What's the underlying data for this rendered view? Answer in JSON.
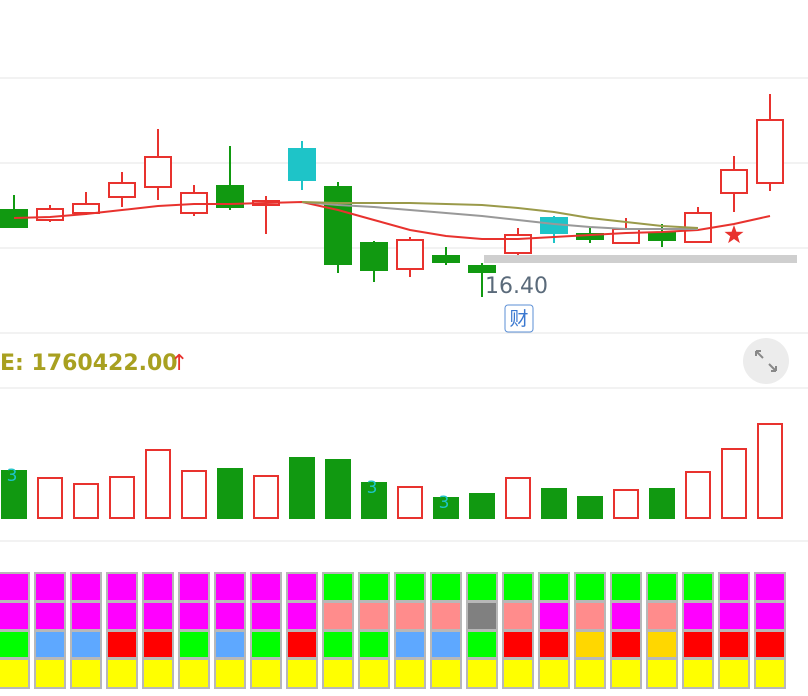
{
  "chart_data": {
    "type": "candlestick",
    "ylim": [
      16.04,
      18.59
    ],
    "candles": {
      "open": [
        17.27,
        17.17,
        17.24,
        17.4,
        17.5,
        17.24,
        17.51,
        17.32,
        17.88,
        17.5,
        16.94,
        16.68,
        16.81,
        16.71,
        16.84,
        17.19,
        17.03,
        16.94,
        17.04,
        16.95,
        17.44,
        17.54
      ],
      "close": [
        17.1,
        17.28,
        17.33,
        17.54,
        17.8,
        17.44,
        17.3,
        17.36,
        17.57,
        16.73,
        16.67,
        16.97,
        16.75,
        16.65,
        17.02,
        17.04,
        16.98,
        17.08,
        16.97,
        17.24,
        17.67,
        18.17
      ],
      "high": [
        17.42,
        17.32,
        17.45,
        17.65,
        18.08,
        17.52,
        17.91,
        17.41,
        17.96,
        17.55,
        16.96,
        17.0,
        16.9,
        16.74,
        17.09,
        17.21,
        17.1,
        17.19,
        17.13,
        17.3,
        17.81,
        18.43
      ],
      "low": [
        17.09,
        17.15,
        17.22,
        17.3,
        17.37,
        17.21,
        17.27,
        17.03,
        17.47,
        16.64,
        16.55,
        16.6,
        16.72,
        16.4,
        16.82,
        16.94,
        16.94,
        16.93,
        16.9,
        16.94,
        17.25,
        17.46
      ],
      "colors": [
        "#119911",
        "#e8322e",
        "#e8322e",
        "#e8322e",
        "#e8322e",
        "#e8322e",
        "#119911",
        "#e8322e",
        "#1ec4c8",
        "#119911",
        "#119911",
        "#e8322e",
        "#119911",
        "#119911",
        "#e8322e",
        "#1ec4c8",
        "#119911",
        "#e8322e",
        "#119911",
        "#e8322e",
        "#e8322e",
        "#e8322e"
      ]
    },
    "lines": [
      {
        "color": "#e8322e",
        "values": [
          17.19,
          17.2,
          17.23,
          17.27,
          17.31,
          17.33,
          17.33,
          17.34,
          17.35,
          17.27,
          17.17,
          17.07,
          17.01,
          16.98,
          16.98,
          17.0,
          17.02,
          17.04,
          17.05,
          17.07,
          17.13,
          17.21
        ]
      },
      {
        "color": "#999999",
        "values": [
          null,
          null,
          null,
          null,
          null,
          null,
          null,
          null,
          17.35,
          17.32,
          17.3,
          17.27,
          17.24,
          17.21,
          17.17,
          17.13,
          17.1,
          17.08,
          17.08,
          17.08,
          null,
          null
        ]
      },
      {
        "color": "#9a9a4a",
        "values": [
          null,
          null,
          null,
          null,
          null,
          null,
          null,
          null,
          17.35,
          17.34,
          17.34,
          17.34,
          17.33,
          17.32,
          17.29,
          17.25,
          17.19,
          17.15,
          17.11,
          17.09,
          null,
          null
        ]
      }
    ],
    "annotations": [
      {
        "value": 16.4,
        "label": "16.40"
      }
    ],
    "badge": "财",
    "indicator_label": "E: 1760422.00",
    "indicator_arrow": "↑",
    "volume": {
      "ylim": [
        0,
        100
      ],
      "values": [
        47,
        40,
        34,
        41,
        68,
        47,
        49,
        42,
        60,
        58,
        35,
        31,
        20,
        24,
        40,
        29,
        21,
        28,
        29,
        46,
        69,
        94
      ],
      "colors": [
        "#119911",
        "#e8322e",
        "#e8322e",
        "#e8322e",
        "#e8322e",
        "#e8322e",
        "#119911",
        "#e8322e",
        "#119911",
        "#119911",
        "#119911",
        "#e8322e",
        "#119911",
        "#119911",
        "#e8322e",
        "#119911",
        "#119911",
        "#e8322e",
        "#119911",
        "#e8322e",
        "#e8322e",
        "#e8322e"
      ],
      "markers": [
        "3",
        null,
        null,
        null,
        null,
        null,
        null,
        null,
        null,
        null,
        "3",
        null,
        "3",
        null,
        null,
        null,
        null,
        null,
        null,
        null,
        null,
        null
      ]
    },
    "cell_colors": [
      [
        "#ff00ff",
        "#ff00ff",
        "#ff00ff",
        "#ff00ff",
        "#ff00ff",
        "#ff00ff",
        "#ff00ff",
        "#ff00ff",
        "#ff00ff",
        "#00ff00",
        "#00ff00",
        "#00ff00",
        "#00ff00",
        "#00ff00",
        "#00ff00",
        "#00ff00",
        "#00ff00",
        "#00ff00",
        "#00ff00",
        "#00ff00",
        "#ff00ff",
        "#ff00ff"
      ],
      [
        "#ff00ff",
        "#ff00ff",
        "#ff00ff",
        "#ff00ff",
        "#ff00ff",
        "#ff00ff",
        "#ff00ff",
        "#ff00ff",
        "#ff00ff",
        "#ff8c8c",
        "#ff8c8c",
        "#ff8c8c",
        "#ff8c8c",
        "#808080",
        "#ff8c8c",
        "#ff00ff",
        "#ff8c8c",
        "#ff00ff",
        "#ff8c8c",
        "#ff00ff",
        "#ff00ff",
        "#ff00ff"
      ],
      [
        "#00ff00",
        "#5ea8ff",
        "#5ea8ff",
        "#ff0000",
        "#ff0000",
        "#00ff00",
        "#5ea8ff",
        "#00ff00",
        "#ff0000",
        "#00ff00",
        "#00ff00",
        "#5ea8ff",
        "#5ea8ff",
        "#00ff00",
        "#ff0000",
        "#ff0000",
        "#ffd700",
        "#ff0000",
        "#ffd700",
        "#ff0000",
        "#ff0000",
        "#ff0000"
      ],
      [
        "#ffff00",
        "#ffff00",
        "#ffff00",
        "#ffff00",
        "#ffff00",
        "#ffff00",
        "#ffff00",
        "#ffff00",
        "#ffff00",
        "#ffff00",
        "#ffff00",
        "#ffff00",
        "#ffff00",
        "#ffff00",
        "#ffff00",
        "#ffff00",
        "#ffff00",
        "#ffff00",
        "#ffff00",
        "#ffff00",
        "#ffff00",
        "#ffff00"
      ]
    ]
  }
}
